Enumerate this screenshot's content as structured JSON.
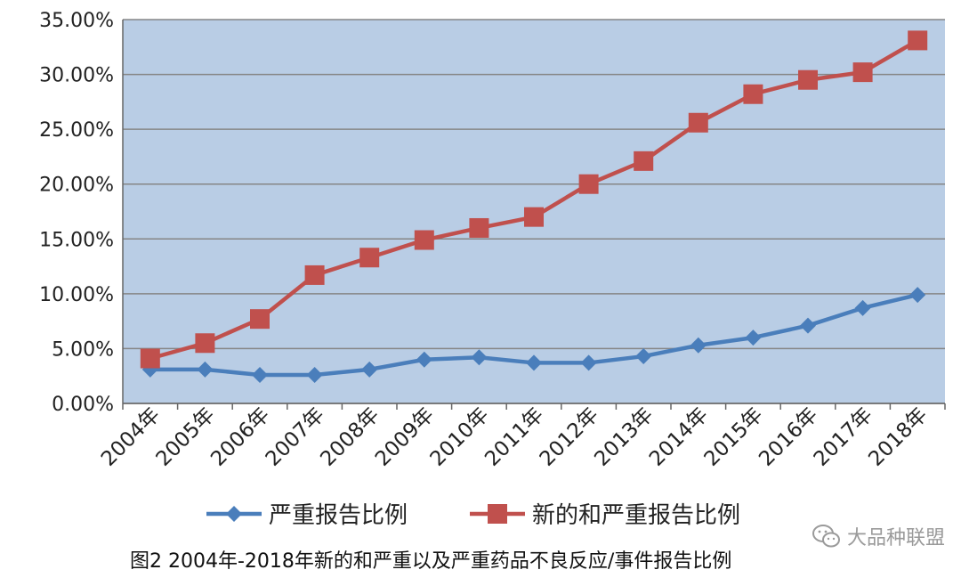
{
  "chart_data": {
    "type": "line",
    "categories": [
      "2004年",
      "2005年",
      "2006年",
      "2007年",
      "2008年",
      "2009年",
      "2010年",
      "2011年",
      "2012年",
      "2013年",
      "2014年",
      "2015年",
      "2016年",
      "2017年",
      "2018年"
    ],
    "series": [
      {
        "name": "严重报告比例",
        "color": "#4a7ebb",
        "marker": "diamond",
        "values": [
          3.1,
          3.1,
          2.6,
          2.6,
          3.1,
          4.0,
          4.2,
          3.7,
          3.7,
          4.3,
          5.3,
          6.0,
          7.1,
          8.7,
          9.9
        ]
      },
      {
        "name": "新的和严重报告比例",
        "color": "#c0504d",
        "marker": "square",
        "values": [
          4.1,
          5.5,
          7.7,
          11.7,
          13.3,
          14.9,
          16.0,
          17.0,
          20.0,
          22.1,
          25.6,
          28.2,
          29.5,
          30.2,
          33.1
        ]
      }
    ],
    "ylim": [
      0,
      35
    ],
    "yticks": [
      "0.00%",
      "5.00%",
      "10.00%",
      "15.00%",
      "20.00%",
      "25.00%",
      "30.00%",
      "35.00%"
    ],
    "grid": true,
    "plot_background": "#b9cde5",
    "legend_position": "bottom"
  },
  "caption": "图2 2004年-2018年新的和严重以及严重药品不良反应/事件报告比例",
  "watermark": "大品种联盟"
}
